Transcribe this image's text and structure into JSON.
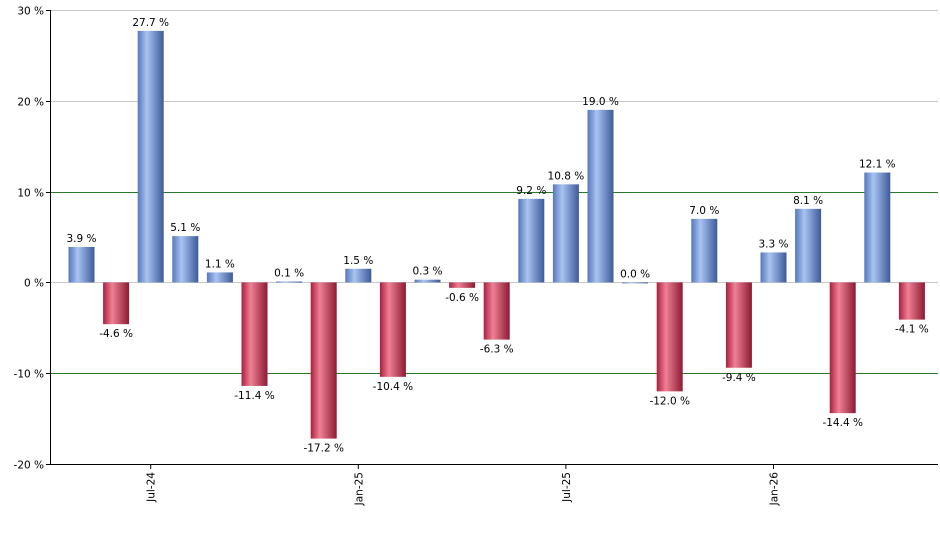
{
  "chart_data": {
    "type": "bar",
    "values": [
      3.9,
      -4.6,
      27.7,
      5.1,
      1.1,
      -11.4,
      0.1,
      -17.2,
      1.5,
      -10.4,
      0.3,
      -0.6,
      -6.3,
      9.2,
      10.8,
      19.0,
      0.0,
      -12.0,
      7.0,
      -9.4,
      3.3,
      8.1,
      -14.4,
      12.1,
      -4.1
    ],
    "data_labels": [
      "3.9 %",
      "-4.6 %",
      "27.7 %",
      "5.1 %",
      "1.1 %",
      "-11.4 %",
      "0.1 %",
      "-17.2 %",
      "1.5 %",
      "-10.4 %",
      "0.3 %",
      "-0.6 %",
      "-6.3 %",
      "9.2 %",
      "10.8 %",
      "19.0 %",
      "0.0 %",
      "-12.0 %",
      "7.0 %",
      "-9.4 %",
      "3.3 %",
      "8.1 %",
      "-14.4 %",
      "12.1 %",
      "-4.1 %"
    ],
    "x_tick_labels": [
      {
        "label": "Jul-24",
        "index": 2
      },
      {
        "label": "Jan-25",
        "index": 8
      },
      {
        "label": "Jul-25",
        "index": 14
      },
      {
        "label": "Jan-26",
        "index": 20
      }
    ],
    "y_ticks": [
      30,
      20,
      10,
      0,
      -10,
      -20
    ],
    "y_tick_labels": [
      "30 %",
      "20 %",
      "10 %",
      "0 %",
      "-10 %",
      "-20 %"
    ],
    "ylim": [
      -20,
      30
    ],
    "grid": true,
    "green_lines": [
      10,
      -10
    ],
    "colors": {
      "positive": "#7a9ad8",
      "negative": "#c8324e",
      "grid": "#c8c8c8",
      "reference_line": "#2a7a2a",
      "axis": "#000000"
    }
  }
}
